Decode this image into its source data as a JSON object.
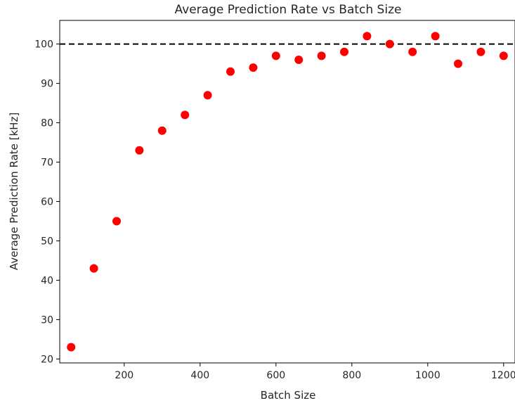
{
  "chart_data": {
    "type": "scatter",
    "title": "Average Prediction Rate vs Batch Size",
    "xlabel": "Batch Size",
    "ylabel": "Average Prediction Rate [kHz]",
    "xlim": [
      30,
      1230
    ],
    "ylim": [
      19,
      106
    ],
    "xticks": [
      200,
      400,
      600,
      800,
      1000,
      1200
    ],
    "yticks": [
      20,
      30,
      40,
      50,
      60,
      70,
      80,
      90,
      100
    ],
    "grid": false,
    "reference_line": {
      "y": 100,
      "style": "dashed",
      "color": "#000000"
    },
    "marker_color": "#ff0000",
    "x": [
      60,
      120,
      180,
      240,
      300,
      360,
      420,
      480,
      540,
      600,
      660,
      720,
      780,
      840,
      900,
      960,
      1020,
      1080,
      1140,
      1200
    ],
    "y": [
      23,
      43,
      55,
      73,
      78,
      82,
      87,
      93,
      94,
      97,
      96,
      97,
      98,
      102,
      100,
      98,
      102,
      95,
      98,
      97
    ]
  }
}
